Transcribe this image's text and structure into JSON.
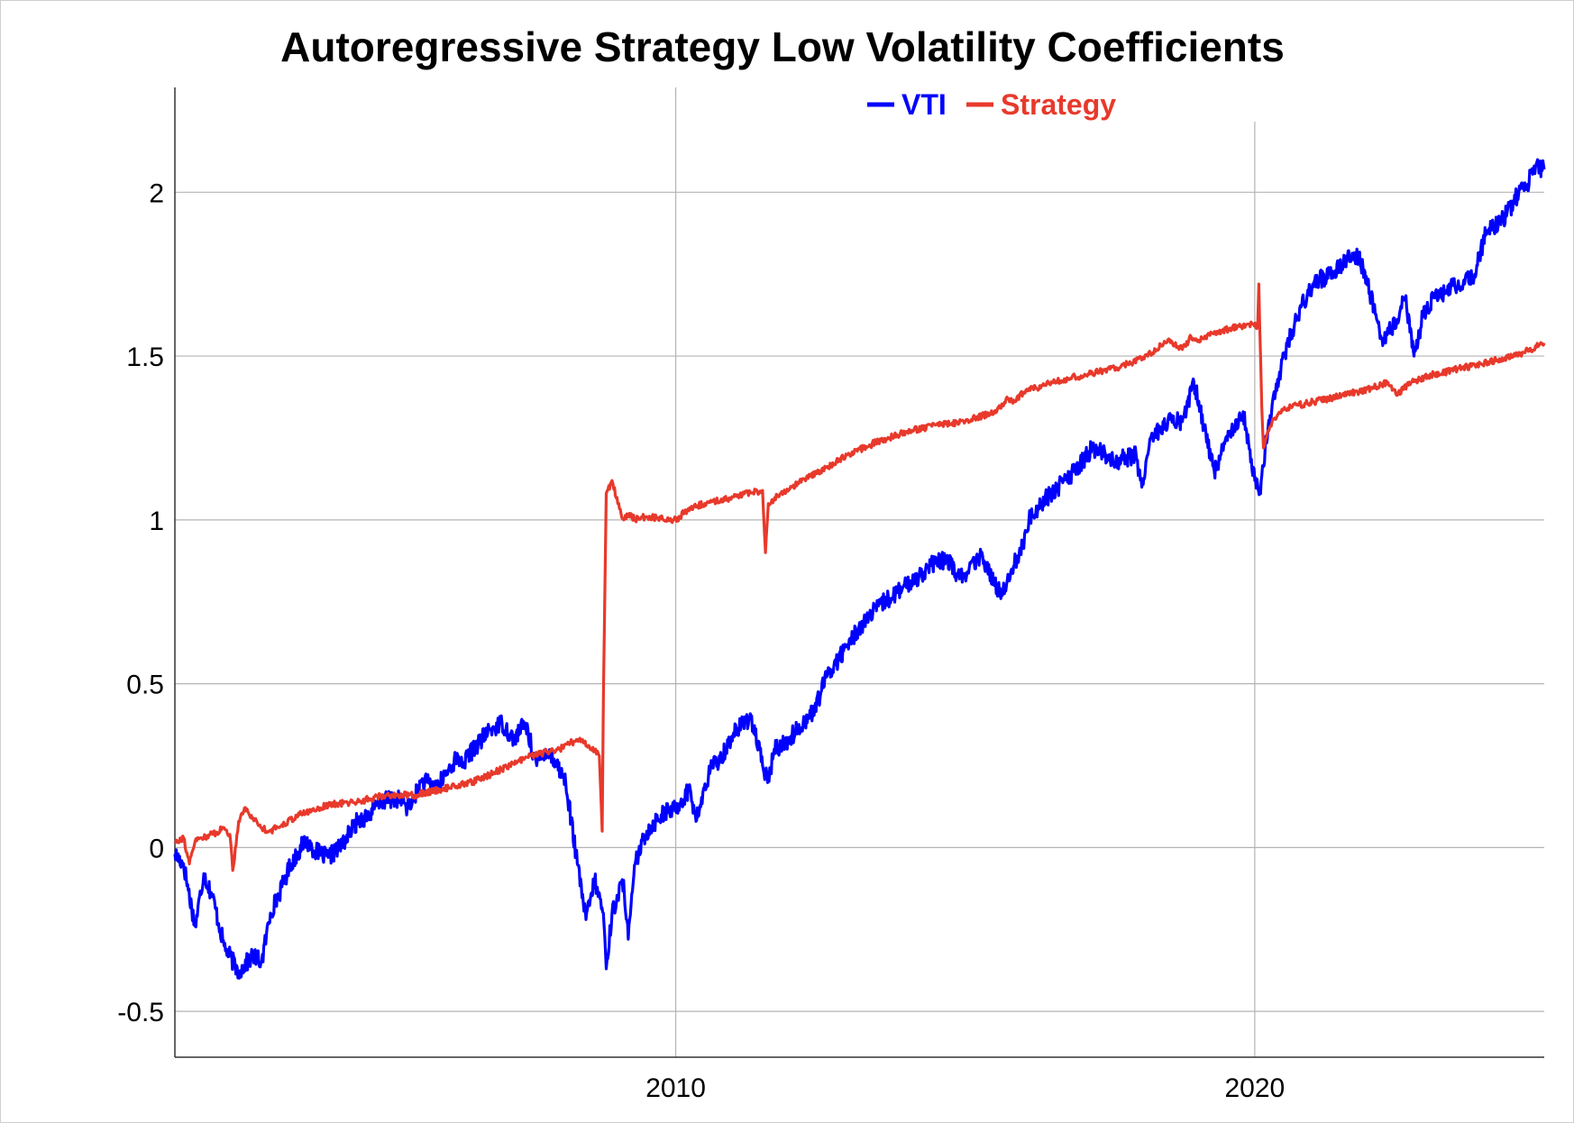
{
  "chart_data": {
    "type": "line",
    "title": "Autoregressive Strategy Low Volatility Coefficients",
    "xlabel": "",
    "ylabel": "",
    "xlim": [
      2001.35,
      2025.0
    ],
    "ylim": [
      -0.64,
      2.32
    ],
    "y_ticks": [
      -0.5,
      0,
      0.5,
      1,
      1.5,
      2
    ],
    "y_tick_labels": [
      "-0.5",
      "0",
      "0.5",
      "1",
      "1.5",
      "2"
    ],
    "x_ticks": [
      2010,
      2020
    ],
    "x_tick_labels": [
      "2010",
      "2020"
    ],
    "grid": true,
    "legend_position": "top",
    "series": [
      {
        "name": "VTI",
        "color": "#0000ff",
        "x": [
          2001.35,
          2001.5,
          2001.7,
          2001.85,
          2002.0,
          2002.2,
          2002.45,
          2002.7,
          2002.85,
          2003.0,
          2003.2,
          2003.35,
          2003.6,
          2003.85,
          2004.0,
          2004.2,
          2004.5,
          2004.7,
          2004.9,
          2005.2,
          2005.4,
          2005.6,
          2005.9,
          2006.2,
          2006.35,
          2006.5,
          2006.8,
          2007.0,
          2007.2,
          2007.4,
          2007.6,
          2007.75,
          2007.9,
          2008.1,
          2008.3,
          2008.45,
          2008.6,
          2008.75,
          2008.8,
          2008.9,
          2009.0,
          2009.1,
          2009.18,
          2009.3,
          2009.5,
          2009.75,
          2010.0,
          2010.25,
          2010.35,
          2010.6,
          2010.8,
          2011.0,
          2011.3,
          2011.5,
          2011.6,
          2011.7,
          2011.9,
          2012.2,
          2012.4,
          2012.6,
          2012.9,
          2013.2,
          2013.6,
          2014.0,
          2014.4,
          2014.7,
          2014.9,
          2015.3,
          2015.5,
          2015.65,
          2015.8,
          2016.0,
          2016.1,
          2016.3,
          2016.6,
          2016.9,
          2017.2,
          2017.6,
          2017.95,
          2018.05,
          2018.2,
          2018.5,
          2018.75,
          2018.95,
          2019.3,
          2019.6,
          2019.8,
          2020.0,
          2020.1,
          2020.18,
          2020.23,
          2020.3,
          2020.5,
          2020.8,
          2021.0,
          2021.3,
          2021.6,
          2021.8,
          2021.95,
          2022.2,
          2022.45,
          2022.6,
          2022.75,
          2022.9,
          2023.1,
          2023.3,
          2023.6,
          2023.8,
          2024.0,
          2024.3,
          2024.5,
          2024.7,
          2024.85,
          2025.0
        ],
        "values": [
          -0.02,
          -0.05,
          -0.24,
          -0.08,
          -0.15,
          -0.3,
          -0.38,
          -0.33,
          -0.35,
          -0.2,
          -0.12,
          -0.05,
          0.02,
          -0.02,
          -0.03,
          0.0,
          0.08,
          0.1,
          0.14,
          0.15,
          0.12,
          0.2,
          0.19,
          0.27,
          0.26,
          0.3,
          0.36,
          0.38,
          0.33,
          0.38,
          0.25,
          0.3,
          0.27,
          0.2,
          -0.05,
          -0.22,
          -0.1,
          -0.2,
          -0.37,
          -0.2,
          -0.15,
          -0.1,
          -0.28,
          -0.05,
          0.05,
          0.1,
          0.12,
          0.18,
          0.08,
          0.24,
          0.28,
          0.35,
          0.4,
          0.25,
          0.2,
          0.3,
          0.32,
          0.38,
          0.42,
          0.52,
          0.6,
          0.68,
          0.75,
          0.8,
          0.86,
          0.88,
          0.82,
          0.89,
          0.8,
          0.78,
          0.85,
          0.92,
          1.0,
          1.05,
          1.1,
          1.15,
          1.22,
          1.18,
          1.2,
          1.1,
          1.25,
          1.3,
          1.3,
          1.42,
          1.15,
          1.28,
          1.33,
          1.12,
          1.08,
          1.22,
          1.28,
          1.35,
          1.5,
          1.65,
          1.72,
          1.75,
          1.8,
          1.8,
          1.72,
          1.55,
          1.6,
          1.68,
          1.5,
          1.62,
          1.68,
          1.7,
          1.72,
          1.75,
          1.88,
          1.92,
          1.98,
          2.02,
          2.08,
          2.07
        ]
      },
      {
        "name": "Strategy",
        "color": "#e8392b",
        "x": [
          2001.35,
          2001.5,
          2001.6,
          2001.7,
          2001.8,
          2002.0,
          2002.2,
          2002.3,
          2002.35,
          2002.45,
          2002.55,
          2002.7,
          2002.85,
          2003.0,
          2003.2,
          2003.5,
          2004.0,
          2004.5,
          2005.0,
          2005.5,
          2006.0,
          2006.5,
          2007.0,
          2007.5,
          2008.0,
          2008.3,
          2008.6,
          2008.68,
          2008.73,
          2008.75,
          2008.8,
          2008.9,
          2009.0,
          2009.1,
          2009.2,
          2009.3,
          2009.5,
          2010.0,
          2010.2,
          2010.5,
          2011.0,
          2011.5,
          2011.55,
          2011.6,
          2011.8,
          2012.0,
          2012.5,
          2013.0,
          2013.5,
          2014.0,
          2014.5,
          2015.0,
          2015.5,
          2015.75,
          2015.85,
          2016.0,
          2016.5,
          2017.0,
          2017.5,
          2017.9,
          2018.3,
          2018.5,
          2018.75,
          2018.9,
          2019.0,
          2019.5,
          2019.95,
          2020.05,
          2020.07,
          2020.12,
          2020.15,
          2020.2,
          2020.3,
          2020.5,
          2021.0,
          2021.5,
          2022.0,
          2022.3,
          2022.45,
          2022.7,
          2023.0,
          2023.5,
          2024.0,
          2024.5,
          2025.0
        ],
        "values": [
          0.02,
          0.03,
          -0.05,
          0.02,
          0.03,
          0.04,
          0.06,
          0.04,
          -0.07,
          0.08,
          0.12,
          0.09,
          0.06,
          0.05,
          0.07,
          0.1,
          0.13,
          0.14,
          0.16,
          0.16,
          0.18,
          0.2,
          0.24,
          0.28,
          0.3,
          0.33,
          0.3,
          0.28,
          0.05,
          0.45,
          1.08,
          1.12,
          1.05,
          1.0,
          1.02,
          1.0,
          1.01,
          1.0,
          1.03,
          1.05,
          1.07,
          1.09,
          0.9,
          1.05,
          1.08,
          1.1,
          1.15,
          1.2,
          1.24,
          1.27,
          1.29,
          1.3,
          1.33,
          1.37,
          1.36,
          1.39,
          1.42,
          1.44,
          1.46,
          1.48,
          1.52,
          1.55,
          1.52,
          1.56,
          1.55,
          1.58,
          1.6,
          1.59,
          1.72,
          1.35,
          1.22,
          1.25,
          1.3,
          1.34,
          1.36,
          1.38,
          1.4,
          1.42,
          1.38,
          1.42,
          1.44,
          1.46,
          1.48,
          1.5,
          1.54
        ]
      }
    ]
  }
}
